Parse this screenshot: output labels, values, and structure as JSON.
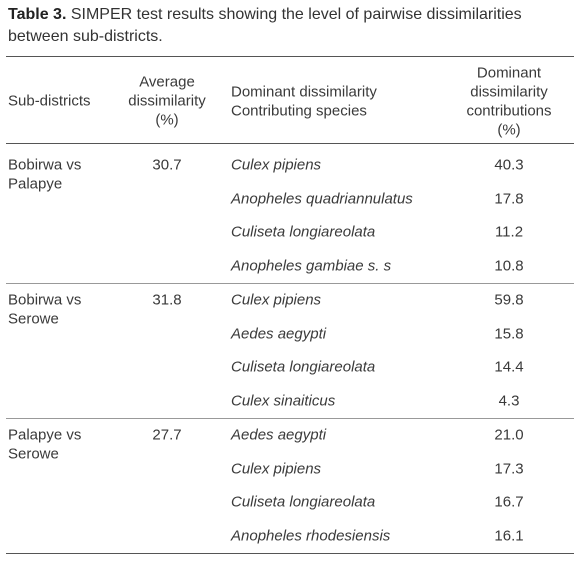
{
  "caption": {
    "label": "Table 3.",
    "text": "SIMPER test results showing the level of pairwise dissimilarities between sub-districts."
  },
  "table": {
    "headers": [
      [
        "Sub-districts"
      ],
      [
        "Average",
        "dissimilarity",
        "(%)"
      ],
      [
        "Dominant dissimilarity",
        "Contributing species"
      ],
      [
        "Dominant",
        "dissimilarity",
        "contributions",
        "(%)"
      ]
    ],
    "groups": [
      {
        "sub_district": [
          "Bobirwa vs",
          "Palapye"
        ],
        "average": "30.7",
        "rows": [
          [
            "Culex pipiens",
            "40.3"
          ],
          [
            "Anopheles quadriannulatus",
            "17.8"
          ],
          [
            "Culiseta longiareolata",
            "11.2"
          ],
          [
            "Anopheles gambiae s. s",
            "10.8"
          ]
        ]
      },
      {
        "sub_district": [
          "Bobirwa vs",
          "Serowe"
        ],
        "average": "31.8",
        "rows": [
          [
            "Culex pipiens",
            "59.8"
          ],
          [
            "Aedes aegypti",
            "15.8"
          ],
          [
            "Culiseta longiareolata",
            "14.4"
          ],
          [
            "Culex sinaiticus",
            "4.3"
          ]
        ]
      },
      {
        "sub_district": [
          "Palapye vs",
          "Serowe"
        ],
        "average": "27.7",
        "rows": [
          [
            "Aedes aegypti",
            "21.0"
          ],
          [
            "Culex pipiens",
            "17.3"
          ],
          [
            "Culiseta longiareolata",
            "16.7"
          ],
          [
            "Anopheles rhodesiensis",
            "16.1"
          ]
        ]
      }
    ]
  }
}
